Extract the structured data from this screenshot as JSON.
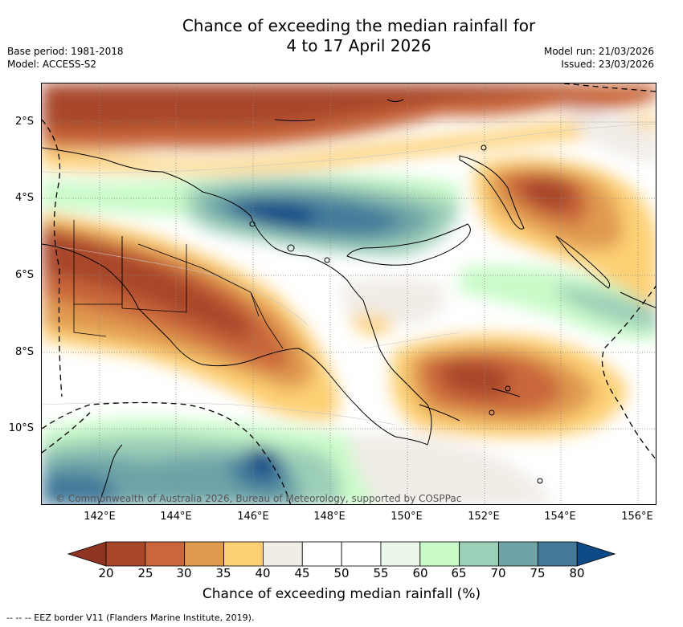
{
  "title_line1": "Chance of exceeding the median rainfall for",
  "title_line2": "4 to 17 April 2026",
  "base_period": "Base period: 1981-2018",
  "model": "Model: ACCESS-S2",
  "model_run": "Model run: 21/03/2026",
  "issued": "Issued: 23/03/2026",
  "lat_labels": [
    "2°S",
    "4°S",
    "6°S",
    "8°S",
    "10°S"
  ],
  "lon_labels": [
    "142°E",
    "144°E",
    "146°E",
    "148°E",
    "150°E",
    "152°E",
    "154°E",
    "156°E"
  ],
  "copyright": "© Commonwealth of Australia 2026, Bureau of Meteorology, supported by COSPPac",
  "colorbar": {
    "ticks": [
      "20",
      "25",
      "30",
      "35",
      "40",
      "45",
      "50",
      "55",
      "60",
      "65",
      "70",
      "75",
      "80"
    ],
    "label": "Chance of exceeding median rainfall (%)",
    "colors": [
      "#a8462a",
      "#c9663a",
      "#e09a4f",
      "#fdd075",
      "#f0ece6",
      "#ffffff",
      "#ffffff",
      "#eaf6ea",
      "#c9fbc8",
      "#9ccfb7",
      "#6ea4a7",
      "#437a9a",
      "#114c86"
    ],
    "under_color": "#8f3322",
    "over_color": "#0e4a85"
  },
  "footer": "-- -- -- EEZ border V11 (Flanders Marine Institute, 2019)."
}
